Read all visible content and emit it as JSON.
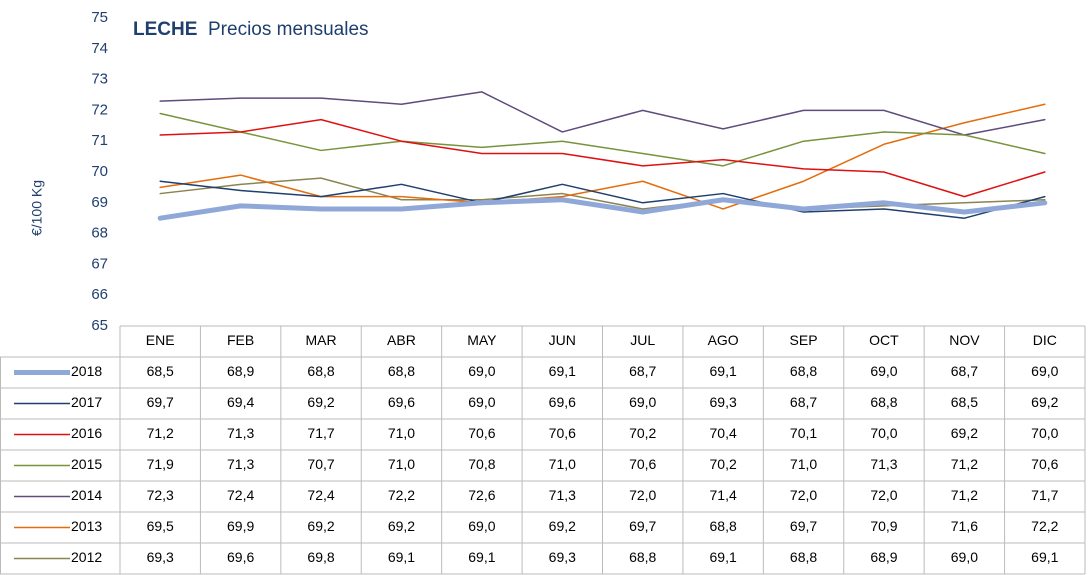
{
  "chart_data": {
    "type": "line",
    "title": "LECHE",
    "subtitle": "Precios mensuales",
    "y_label": "€/100 Kg",
    "categories": [
      "ENE",
      "FEB",
      "MAR",
      "ABR",
      "MAY",
      "JUN",
      "JUL",
      "AGO",
      "SEP",
      "OCT",
      "NOV",
      "DIC"
    ],
    "ylim": [
      65,
      75
    ],
    "yticks": [
      65,
      66,
      67,
      68,
      69,
      70,
      71,
      72,
      73,
      74,
      75
    ],
    "grid": false,
    "series": [
      {
        "name": "2018",
        "color": "#8fa8d8",
        "line_width": 5,
        "values": [
          68.5,
          68.9,
          68.8,
          68.8,
          69.0,
          69.1,
          68.7,
          69.1,
          68.8,
          69.0,
          68.7,
          69.0
        ],
        "value_labels": [
          "68,5",
          "68,9",
          "68,8",
          "68,8",
          "69,0",
          "69,1",
          "68,7",
          "69,1",
          "68,8",
          "69,0",
          "68,7",
          "69,0"
        ]
      },
      {
        "name": "2017",
        "color": "#1f3f6e",
        "line_width": 1.5,
        "values": [
          69.7,
          69.4,
          69.2,
          69.6,
          69.0,
          69.6,
          69.0,
          69.3,
          68.7,
          68.8,
          68.5,
          69.2
        ],
        "value_labels": [
          "69,7",
          "69,4",
          "69,2",
          "69,6",
          "69,0",
          "69,6",
          "69,0",
          "69,3",
          "68,7",
          "68,8",
          "68,5",
          "69,2"
        ]
      },
      {
        "name": "2016",
        "color": "#e01010",
        "line_width": 1.5,
        "values": [
          71.2,
          71.3,
          71.7,
          71.0,
          70.6,
          70.6,
          70.2,
          70.4,
          70.1,
          70.0,
          69.2,
          70.0
        ],
        "value_labels": [
          "71,2",
          "71,3",
          "71,7",
          "71,0",
          "70,6",
          "70,6",
          "70,2",
          "70,4",
          "70,1",
          "70,0",
          "69,2",
          "70,0"
        ]
      },
      {
        "name": "2015",
        "color": "#77933c",
        "line_width": 1.5,
        "values": [
          71.9,
          71.3,
          70.7,
          71.0,
          70.8,
          71.0,
          70.6,
          70.2,
          71.0,
          71.3,
          71.2,
          70.6
        ],
        "value_labels": [
          "71,9",
          "71,3",
          "70,7",
          "71,0",
          "70,8",
          "71,0",
          "70,6",
          "70,2",
          "71,0",
          "71,3",
          "71,2",
          "70,6"
        ]
      },
      {
        "name": "2014",
        "color": "#5f4b7c",
        "line_width": 1.5,
        "values": [
          72.3,
          72.4,
          72.4,
          72.2,
          72.6,
          71.3,
          72.0,
          71.4,
          72.0,
          72.0,
          71.2,
          71.7
        ],
        "value_labels": [
          "72,3",
          "72,4",
          "72,4",
          "72,2",
          "72,6",
          "71,3",
          "72,0",
          "71,4",
          "72,0",
          "72,0",
          "71,2",
          "71,7"
        ]
      },
      {
        "name": "2013",
        "color": "#e46c0a",
        "line_width": 1.5,
        "values": [
          69.5,
          69.9,
          69.2,
          69.2,
          69.0,
          69.2,
          69.7,
          68.8,
          69.7,
          70.9,
          71.6,
          72.2
        ],
        "value_labels": [
          "69,5",
          "69,9",
          "69,2",
          "69,2",
          "69,0",
          "69,2",
          "69,7",
          "68,8",
          "69,7",
          "70,9",
          "71,6",
          "72,2"
        ]
      },
      {
        "name": "2012",
        "color": "#8b8351",
        "line_width": 1.5,
        "values": [
          69.3,
          69.6,
          69.8,
          69.1,
          69.1,
          69.3,
          68.8,
          69.1,
          68.8,
          68.9,
          69.0,
          69.1
        ],
        "value_labels": [
          "69,3",
          "69,6",
          "69,8",
          "69,1",
          "69,1",
          "69,3",
          "68,8",
          "69,1",
          "68,8",
          "68,9",
          "69,0",
          "69,1"
        ]
      }
    ]
  }
}
